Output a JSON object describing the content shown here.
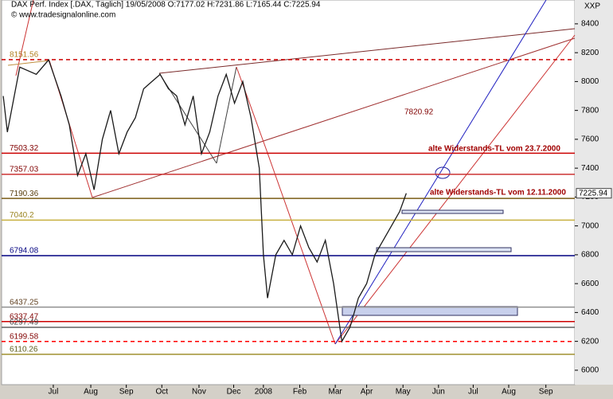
{
  "chart_data": {
    "type": "line",
    "title": "DAX Perf. Index [.DAX, Täglich] 19/05/2008 O:7177.02 H:7231.86 L:7165.44 C:7225.94",
    "subtitle": "© www.tradesignalonline.com",
    "y_axis_label": "XXP",
    "x": [
      0,
      0.5,
      2,
      4,
      5.5,
      7,
      8,
      9,
      10,
      11,
      12,
      13,
      14,
      15,
      16,
      17,
      18,
      19,
      20,
      21,
      22,
      23,
      24,
      25,
      26,
      27,
      28,
      29,
      30,
      31,
      31.5,
      32,
      33,
      34,
      35,
      36,
      37,
      38,
      39,
      40,
      40.5,
      41,
      42,
      43,
      44,
      45,
      46,
      47,
      48,
      48.8
    ],
    "series": [
      {
        "name": "DAX",
        "color": "#1a1a1a",
        "values": [
          7900,
          7650,
          8100,
          8050,
          8150,
          7900,
          7700,
          7350,
          7500,
          7250,
          7600,
          7800,
          7500,
          7650,
          7750,
          7950,
          8000,
          8050,
          7950,
          7900,
          7700,
          7900,
          7500,
          7650,
          7900,
          8050,
          7850,
          8000,
          7750,
          7400,
          6800,
          6500,
          6800,
          6900,
          6800,
          7000,
          6850,
          6750,
          6900,
          6600,
          6400,
          6200,
          6300,
          6500,
          6600,
          6800,
          6900,
          7000,
          7100,
          7225.94
        ]
      }
    ],
    "xlim": [
      -0.2,
      69.2
    ],
    "xticks": [
      {
        "value": 6.06,
        "label": "Jul"
      },
      {
        "value": 10.6,
        "label": "Aug"
      },
      {
        "value": 14.9,
        "label": "Sep"
      },
      {
        "value": 19.2,
        "label": "Oct"
      },
      {
        "value": 23.7,
        "label": "Nov"
      },
      {
        "value": 27.9,
        "label": "Dec"
      },
      {
        "value": 31.5,
        "label": "2008"
      },
      {
        "value": 35.9,
        "label": "Feb"
      },
      {
        "value": 40.2,
        "label": "Mar"
      },
      {
        "value": 44,
        "label": "Apr"
      },
      {
        "value": 48.4,
        "label": "May"
      },
      {
        "value": 52.7,
        "label": "Jun"
      },
      {
        "value": 56.9,
        "label": "Jul"
      },
      {
        "value": 61.2,
        "label": "Aug"
      },
      {
        "value": 65.7,
        "label": "Sep"
      }
    ],
    "ylim": [
      5900,
      8565
    ],
    "yticks": [
      6000,
      6200,
      6400,
      6600,
      6800,
      7000,
      7200,
      7400,
      7600,
      7800,
      8000,
      8200,
      8400
    ],
    "levels": [
      {
        "value": 8151.56,
        "color": "#cc0000",
        "dashed": true,
        "label_color": "#b08020"
      },
      {
        "value": 7503.32,
        "color": "#cc0000",
        "dashed": false,
        "label_color": "#800000"
      },
      {
        "value": 7357.03,
        "color": "#cc3333",
        "dashed": false,
        "label_color": "#800000"
      },
      {
        "value": 7190.36,
        "color": "#7a5c14",
        "dashed": false,
        "label_color": "#5a4010"
      },
      {
        "value": 7040.2,
        "color": "#c8b040",
        "dashed": false,
        "label_color": "#9a8420"
      },
      {
        "value": 6794.08,
        "color": "#000080",
        "dashed": false,
        "label_color": "#000080"
      },
      {
        "value": 6437.25,
        "color": "#909090",
        "dashed": false,
        "label_color": "#604020"
      },
      {
        "value": 6337.47,
        "color": "#cc0000",
        "dashed": false,
        "label_color": "#800000"
      },
      {
        "value": 6297.49,
        "color": "#606060",
        "dashed": false,
        "label_color": "#404040"
      },
      {
        "value": 6199.58,
        "color": "#ff0000",
        "dashed": true,
        "label_color": "#800000"
      },
      {
        "value": 6110.26,
        "color": "#a09030",
        "dashed": false,
        "label_color": "#606020"
      }
    ],
    "annotations": [
      "7820.92",
      "alte Widerstands-TL vom 23.7.2000",
      "alte Widerstands-TL vom 12.11.2000"
    ],
    "price_tag": 7225.94
  }
}
